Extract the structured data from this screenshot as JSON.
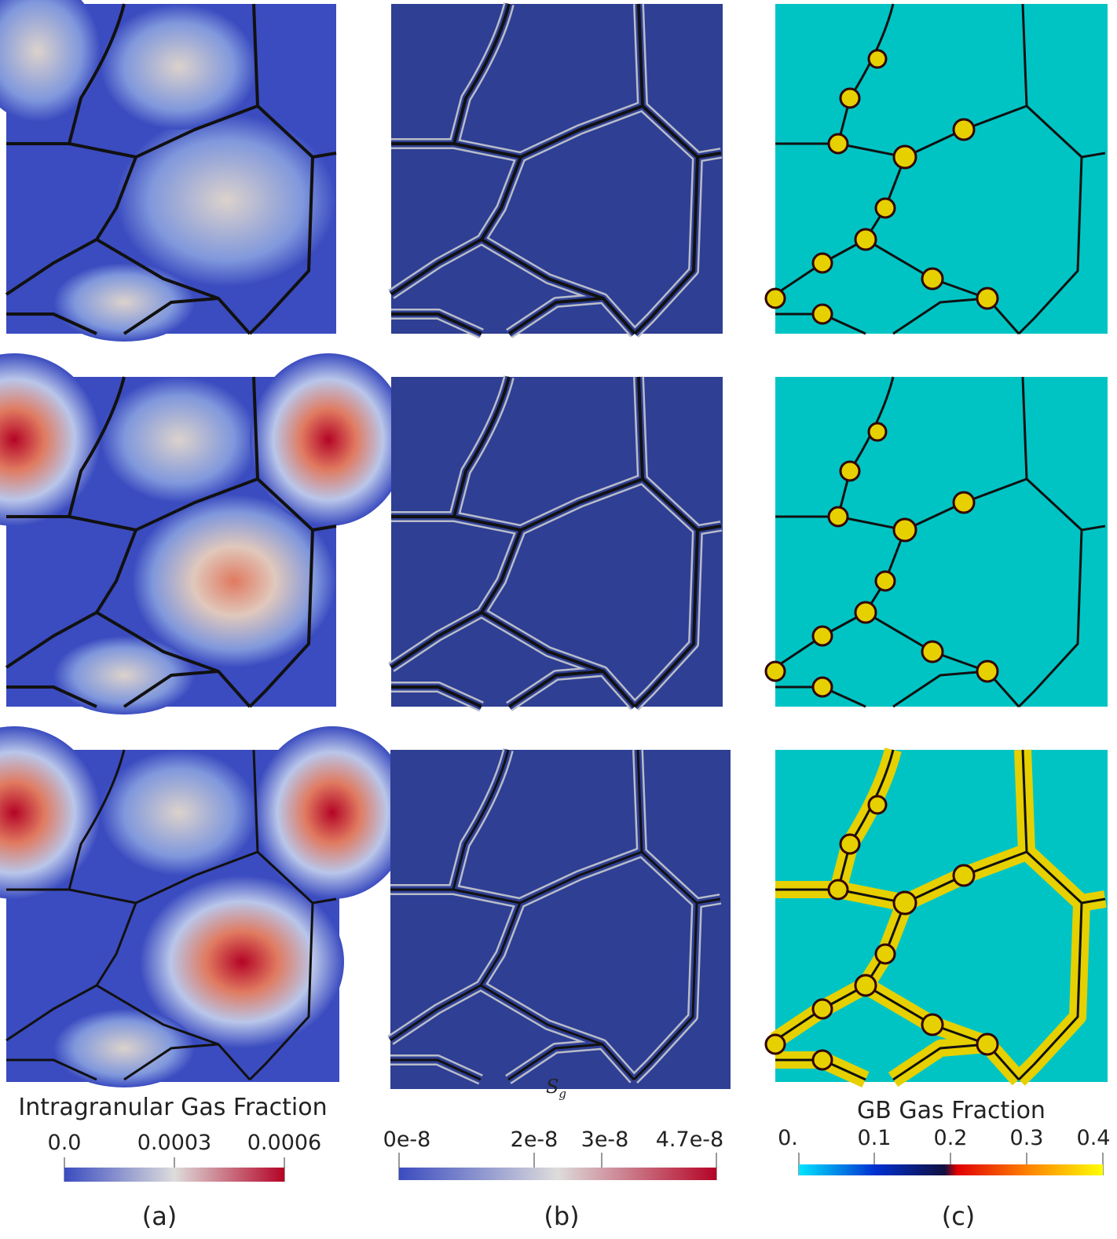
{
  "colorbars": [
    {
      "title": "Intragranular Gas Fraction",
      "tick_labels": [
        "0.0",
        "0.0003",
        "0.0006"
      ]
    },
    {
      "title": "S",
      "title_subscript": "g",
      "tick_labels": [
        "0e-8",
        "2e-8",
        "3e-8",
        "4.7e-8"
      ]
    },
    {
      "title": "GB Gas Fraction",
      "tick_labels": [
        "0.",
        "0.1",
        "0.2",
        "0.3",
        "0.4"
      ]
    }
  ],
  "panel_labels": [
    "(a)",
    "(b)",
    "(c)"
  ]
}
